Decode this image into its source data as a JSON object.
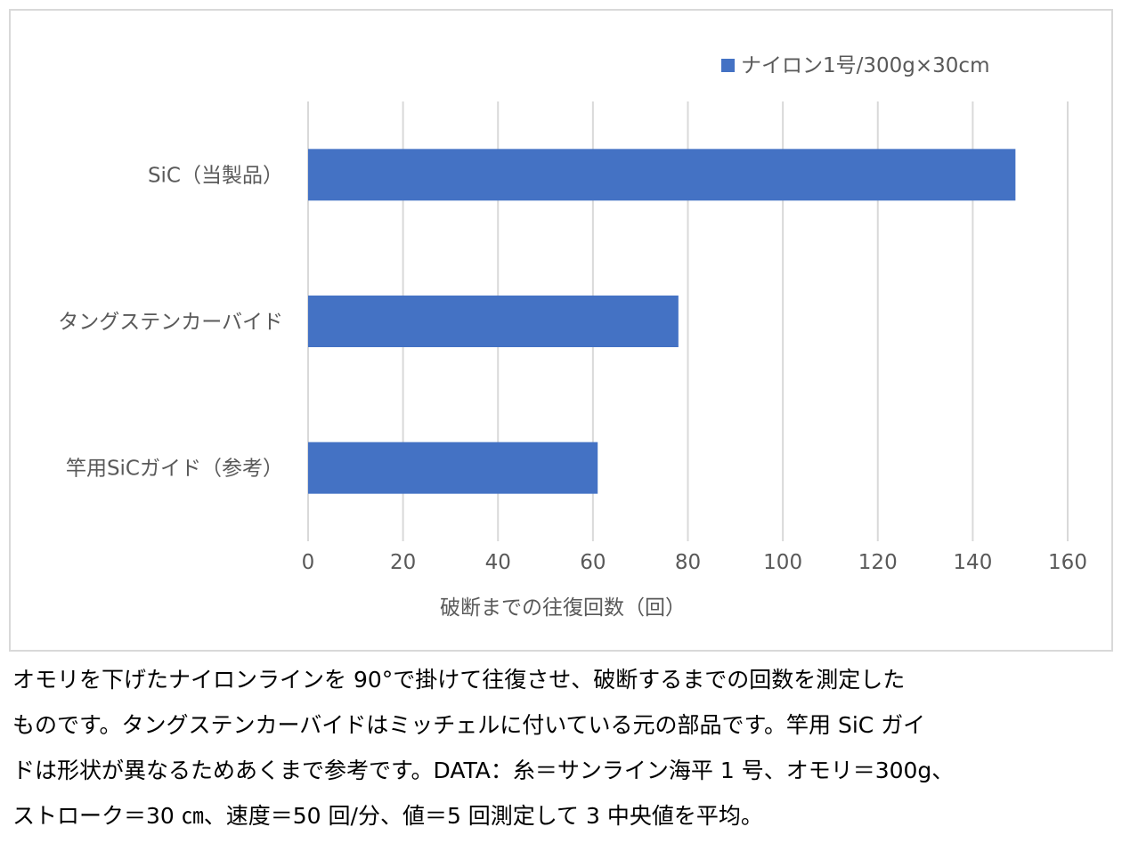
{
  "chart_data": {
    "type": "bar",
    "orientation": "horizontal",
    "categories": [
      "SiC（当製品）",
      "タングステンカーバイド",
      "竿用SiCガイド（参考）"
    ],
    "series": [
      {
        "name": "ナイロン1号/300g×30cm",
        "values": [
          149,
          78,
          61
        ],
        "color": "#4472c4"
      }
    ],
    "xlabel": "破断までの往復回数（回）",
    "xlim": [
      0,
      160
    ],
    "xticks": [
      0,
      20,
      40,
      60,
      80,
      100,
      120,
      140,
      160
    ],
    "grid": "vertical",
    "legend_position": "top-right"
  },
  "caption": "オモリを下げたナイロンラインを 90°で掛けて往復させ、破断するまでの回数を測定した\nものです。タングステンカーバイドはミッチェルに付いている元の部品です。竿用 SiC ガイ\nドは形状が異なるためあくまで参考です。DATA：糸＝サンライン海平 1 号、オモリ＝300g、\nストローク＝30 ㎝、速度＝50 回/分、値＝5 回測定して 3 中央値を平均。"
}
